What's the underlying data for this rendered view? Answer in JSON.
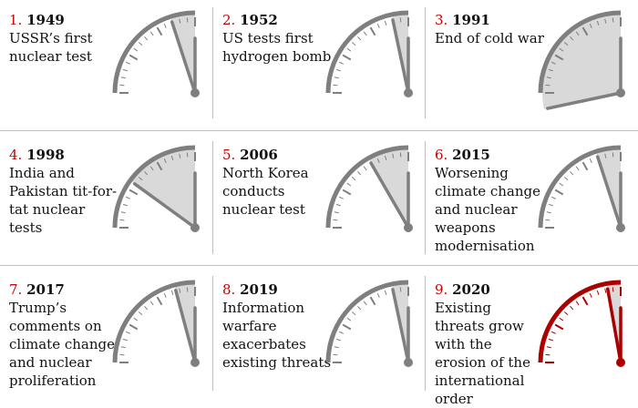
{
  "panels": [
    {
      "number": "1.",
      "year": "1949",
      "text": "USSR’s first nuclear test",
      "minutes_to_midnight": 3,
      "color": "#7f7f7f"
    },
    {
      "number": "2.",
      "year": "1952",
      "text": "US tests first hydrogen bomb",
      "minutes_to_midnight": 2,
      "color": "#7f7f7f"
    },
    {
      "number": "3.",
      "year": "1991",
      "text": "End of cold war",
      "minutes_to_midnight": 17,
      "color": "#7f7f7f"
    },
    {
      "number": "4.",
      "year": "1998",
      "text": "India and Pakistan tit-for-tat nuclear tests",
      "minutes_to_midnight": 9,
      "color": "#7f7f7f"
    },
    {
      "number": "5.",
      "year": "2006",
      "text": "North Korea conducts nuclear test",
      "minutes_to_midnight": 5,
      "color": "#7f7f7f"
    },
    {
      "number": "6.",
      "year": "2015",
      "text": "Worsening climate change and nuclear weapons modernisation",
      "minutes_to_midnight": 3,
      "color": "#7f7f7f"
    },
    {
      "number": "7.",
      "year": "2017",
      "text": "Trump’s comments on climate change and nuclear proliferation",
      "minutes_to_midnight": 2.5,
      "color": "#7f7f7f"
    },
    {
      "number": "8.",
      "year": "2019",
      "text": "Information warfare exacerbates existing threats",
      "minutes_to_midnight": 2,
      "color": "#7f7f7f"
    },
    {
      "number": "9.",
      "year": "2020",
      "text": "Existing threats grow with the erosion of the international order",
      "minutes_to_midnight": 1.67,
      "color": "#ab0000"
    }
  ],
  "colors": {
    "number": "#c70000",
    "sector_fill": "#d9d9d9",
    "divider": "#bdbdbd"
  }
}
